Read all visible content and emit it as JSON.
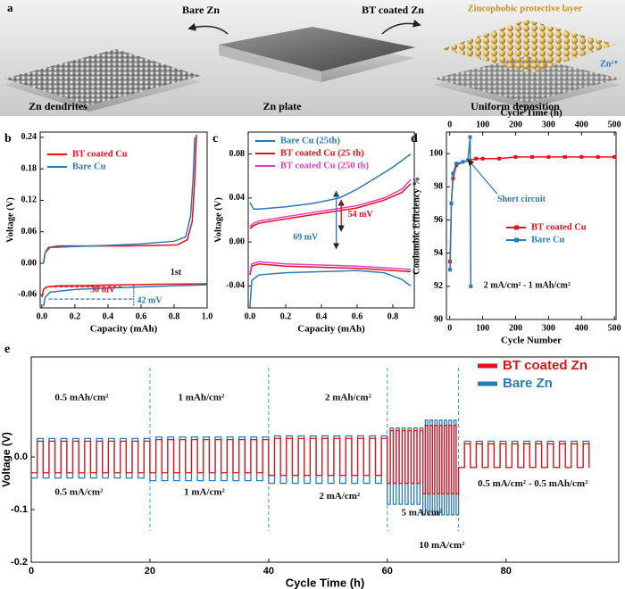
{
  "illustration": {
    "label": "a",
    "left_arrow": "Bare Zn",
    "right_arrow": "BT coated Zn",
    "layer": "Zincophobic protective layer",
    "ion": "Zn²⁺",
    "left_caption": "Zn dendrites",
    "middle_caption": "Zn plate",
    "right_caption": "Uniform deposition"
  },
  "chart_data": [
    {
      "type": "line",
      "label": "b",
      "xlabel": "Capacity (mAh)",
      "ylabel": "Voltage (V)",
      "xlim": [
        -0.01,
        1.0
      ],
      "xticks": [
        {
          "value": 0,
          "label": "0.0"
        },
        0.2,
        0.4,
        0.6,
        0.8,
        {
          "value": 1,
          "label": "1.0"
        }
      ],
      "ylim": [
        -0.085,
        0.25
      ],
      "yticks": [
        -0.06,
        {
          "value": 0,
          "label": "0.00"
        },
        0.06,
        0.12,
        0.18,
        0.24
      ],
      "legend": "upper left",
      "annotations": [
        "1st",
        "30 mV",
        "42 mV"
      ],
      "series": [
        {
          "name": "BT coated Cu",
          "color": "#e8101a",
          "x": [
            0.01,
            0.02,
            0.04,
            0.1,
            0.3,
            0.5,
            0.7,
            0.82,
            0.88,
            0.91,
            0.925,
            0.935,
            0.935,
            0.0,
            0.01,
            0.03,
            0.1,
            0.3,
            0.5,
            0.7,
            1.0
          ],
          "values": [
            0.0,
            0.02,
            0.03,
            0.033,
            0.033,
            0.033,
            0.034,
            0.035,
            0.045,
            0.08,
            0.16,
            0.245,
            null,
            -0.065,
            -0.05,
            -0.045,
            -0.043,
            -0.042,
            -0.041,
            -0.04,
            -0.039
          ]
        },
        {
          "name": "Bare Cu",
          "color": "#2a7ab8",
          "x": [
            0.01,
            0.02,
            0.05,
            0.2,
            0.4,
            0.6,
            0.8,
            0.87,
            0.9,
            0.915,
            0.925,
            0.925,
            0.01,
            0.02,
            0.05,
            0.2,
            0.5,
            0.8,
            1.0
          ],
          "values": [
            0.0,
            0.02,
            0.03,
            0.032,
            0.034,
            0.037,
            0.042,
            0.05,
            0.09,
            0.16,
            0.24,
            null,
            -0.082,
            -0.065,
            -0.055,
            -0.05,
            -0.046,
            -0.043,
            -0.041
          ]
        }
      ]
    },
    {
      "type": "line",
      "label": "c",
      "xlabel": "Capacity (mAh)",
      "ylabel": "Voltage (V)",
      "xlim": [
        -0.01,
        0.92
      ],
      "xticks": [
        {
          "value": 0,
          "label": "0.0"
        },
        0.2,
        0.4,
        0.6,
        0.8
      ],
      "ylim": [
        -0.06,
        0.1
      ],
      "yticks": [
        -0.04,
        {
          "value": 0,
          "label": "0.00"
        },
        0.04,
        0.08
      ],
      "legend": "upper left",
      "annotations": [
        "54 mV",
        "69 mV"
      ],
      "series": [
        {
          "name": "Bare Cu (25th)",
          "color": "#2a7ab8",
          "x": [
            0.0,
            0.02,
            0.05,
            0.2,
            0.35,
            0.5,
            0.6,
            0.7,
            0.8,
            0.9,
            0.9,
            0.0,
            0.01,
            0.05,
            0.2,
            0.4,
            0.6,
            0.75,
            0.85,
            0.9
          ],
          "values": [
            0.036,
            0.03,
            0.03,
            0.032,
            0.035,
            0.04,
            0.048,
            0.058,
            0.068,
            0.08,
            null,
            -0.058,
            -0.035,
            -0.03,
            -0.028,
            -0.027,
            -0.026,
            -0.028,
            -0.034,
            -0.04
          ]
        },
        {
          "name": "BT coated Cu (25 th)",
          "color": "#e8101a",
          "x": [
            0.0,
            0.02,
            0.05,
            0.2,
            0.4,
            0.6,
            0.75,
            0.85,
            0.9,
            0.9,
            0.0,
            0.01,
            0.05,
            0.2,
            0.4,
            0.6,
            0.8,
            0.9
          ],
          "values": [
            0.012,
            0.015,
            0.017,
            0.021,
            0.026,
            0.031,
            0.038,
            0.045,
            0.053,
            null,
            -0.03,
            -0.022,
            -0.02,
            -0.022,
            -0.023,
            -0.024,
            -0.026,
            -0.027
          ]
        },
        {
          "name": "BT coated Cu (250 th)",
          "color": "#e040c0",
          "x": [
            0.0,
            0.02,
            0.05,
            0.2,
            0.4,
            0.6,
            0.75,
            0.85,
            0.9,
            0.9,
            0.0,
            0.01,
            0.05,
            0.2,
            0.4,
            0.6,
            0.8,
            0.9
          ],
          "values": [
            0.014,
            0.017,
            0.019,
            0.023,
            0.028,
            0.033,
            0.04,
            0.048,
            0.057,
            null,
            -0.028,
            -0.02,
            -0.018,
            -0.02,
            -0.021,
            -0.022,
            -0.024,
            -0.025
          ]
        }
      ]
    },
    {
      "type": "line",
      "label": "d",
      "markers": true,
      "xlabel": "Cycle Number",
      "ylabel": "Coulombic Efficiency %",
      "x2label": "Cycle Time (h)",
      "xlim": [
        -10,
        505
      ],
      "xticks": [
        0,
        100,
        200,
        300,
        400,
        500
      ],
      "x2lim": [
        -10,
        505
      ],
      "x2ticks": [
        0,
        100,
        200,
        300,
        400,
        500
      ],
      "ylim": [
        90,
        101.3
      ],
      "yticks": [
        90,
        92,
        94,
        96,
        98,
        100
      ],
      "legend": "lower right",
      "annotations": [
        "Short circuit",
        "2 mA/cm² - 1 mAh/cm²"
      ],
      "series": [
        {
          "name": "BT coated Cu",
          "color": "#e8101a",
          "x": [
            1,
            5,
            10,
            20,
            40,
            60,
            80,
            100,
            150,
            200,
            250,
            300,
            350,
            400,
            450,
            500
          ],
          "values": [
            93.5,
            97,
            98.5,
            99.3,
            99.5,
            99.6,
            99.7,
            99.7,
            99.7,
            99.8,
            99.8,
            99.8,
            99.8,
            99.8,
            99.8,
            99.8
          ]
        },
        {
          "name": "Bare Cu",
          "color": "#2a7ab8",
          "x": [
            1,
            5,
            10,
            20,
            40,
            55,
            62,
            64
          ],
          "values": [
            93,
            97,
            98.8,
            99.4,
            99.5,
            99.6,
            101,
            92
          ]
        }
      ]
    },
    {
      "type": "line",
      "label": "e",
      "step": true,
      "xlabel": "Cycle Time (h)",
      "ylabel": "Voltage (V)",
      "xlim": [
        0,
        99
      ],
      "xticks": [
        0,
        20,
        40,
        60,
        80
      ],
      "ylim": [
        -0.2,
        0.19
      ],
      "yticks": [
        -0.2,
        -0.1,
        {
          "value": 0,
          "label": "0.0"
        }
      ],
      "legend": "upper right",
      "vlines": [
        20,
        40,
        60,
        72
      ],
      "annotations": [
        "0.5 mAh/cm²",
        "1 mAh/cm²",
        "2 mAh/cm²",
        "0.5 mA/cm²",
        "1 mA/cm²",
        "2 mA/cm²",
        "5 mA/cm²",
        "10 mA/cm²",
        "0.5 mA/cm² - 0.5 mAh/cm²"
      ],
      "x": [
        0,
        1,
        2,
        3,
        4,
        5,
        6,
        7,
        8,
        9,
        10,
        11,
        12,
        13,
        14,
        15,
        16,
        17,
        18,
        19,
        20,
        21,
        22,
        23,
        24,
        25,
        26,
        27,
        28,
        29,
        30,
        31,
        32,
        33,
        34,
        35,
        36,
        37,
        38,
        39,
        40,
        41,
        42,
        43,
        44,
        45,
        46,
        47,
        48,
        49,
        50,
        51,
        52,
        53,
        54,
        55,
        56,
        57,
        58,
        59,
        60,
        60.5,
        61,
        61.5,
        62,
        62.5,
        63,
        63.5,
        64,
        64.5,
        65,
        65.5,
        66,
        66.4,
        66.8,
        67.2,
        67.6,
        68,
        68.4,
        68.8,
        69.2,
        69.6,
        70,
        70.4,
        70.8,
        71.2,
        71.6,
        72,
        73,
        74,
        75,
        76,
        77,
        78,
        79,
        80,
        81,
        82,
        83,
        84,
        85,
        86,
        87,
        88,
        89,
        90,
        91,
        92,
        93,
        94
      ],
      "series": [
        {
          "name": "Bare Zn",
          "color": "#2a7ab8",
          "values": [
            -0.04,
            0.035,
            -0.04,
            0.035,
            -0.04,
            0.035,
            -0.04,
            0.035,
            -0.04,
            0.035,
            -0.04,
            0.035,
            -0.04,
            0.035,
            -0.04,
            0.035,
            -0.04,
            0.035,
            -0.04,
            0.035,
            -0.045,
            0.038,
            -0.045,
            0.038,
            -0.045,
            0.038,
            -0.045,
            0.038,
            -0.045,
            0.038,
            -0.045,
            0.038,
            -0.045,
            0.038,
            -0.045,
            0.038,
            -0.045,
            0.038,
            -0.045,
            0.038,
            -0.05,
            0.04,
            -0.05,
            0.04,
            -0.05,
            0.04,
            -0.05,
            0.04,
            -0.05,
            0.04,
            -0.05,
            0.04,
            -0.05,
            0.04,
            -0.05,
            0.04,
            -0.05,
            0.04,
            -0.05,
            0.04,
            -0.09,
            0.055,
            -0.09,
            0.055,
            -0.09,
            0.055,
            -0.09,
            0.055,
            -0.09,
            0.055,
            -0.09,
            0.055,
            -0.11,
            0.07,
            -0.11,
            0.07,
            -0.11,
            0.07,
            -0.11,
            0.07,
            -0.11,
            0.07,
            -0.11,
            0.07,
            -0.11,
            0.07,
            -0.11,
            -0.02,
            0.03,
            -0.02,
            0.03,
            -0.02,
            0.03,
            -0.02,
            0.03,
            -0.02,
            0.03,
            -0.02,
            0.03,
            -0.02,
            0.03,
            -0.02,
            0.03,
            -0.02,
            0.03,
            -0.02,
            0.03,
            -0.02,
            0.03,
            -0.02
          ]
        },
        {
          "name": "BT coated Zn",
          "color": "#e8101a",
          "values": [
            -0.03,
            0.03,
            -0.03,
            0.03,
            -0.03,
            0.03,
            -0.03,
            0.03,
            -0.03,
            0.03,
            -0.03,
            0.03,
            -0.03,
            0.03,
            -0.03,
            0.03,
            -0.03,
            0.03,
            -0.03,
            0.03,
            -0.03,
            0.033,
            -0.03,
            0.033,
            -0.03,
            0.033,
            -0.03,
            0.033,
            -0.03,
            0.033,
            -0.03,
            0.033,
            -0.03,
            0.033,
            -0.03,
            0.033,
            -0.03,
            0.033,
            -0.03,
            0.033,
            -0.035,
            0.035,
            -0.035,
            0.035,
            -0.035,
            0.035,
            -0.035,
            0.035,
            -0.035,
            0.035,
            -0.035,
            0.035,
            -0.035,
            0.035,
            -0.035,
            0.035,
            -0.035,
            0.035,
            -0.035,
            0.035,
            -0.05,
            0.05,
            -0.05,
            0.05,
            -0.05,
            0.05,
            -0.05,
            0.05,
            -0.05,
            0.05,
            -0.05,
            0.05,
            -0.07,
            0.06,
            -0.07,
            0.06,
            -0.07,
            0.06,
            -0.07,
            0.06,
            -0.07,
            0.06,
            -0.07,
            0.06,
            -0.07,
            0.06,
            -0.07,
            -0.02,
            0.025,
            -0.02,
            0.025,
            -0.02,
            0.025,
            -0.02,
            0.025,
            -0.02,
            0.025,
            -0.02,
            0.025,
            -0.02,
            0.025,
            -0.02,
            0.025,
            -0.02,
            0.025,
            -0.02,
            0.025,
            -0.02,
            0.025,
            -0.02
          ]
        }
      ]
    }
  ]
}
